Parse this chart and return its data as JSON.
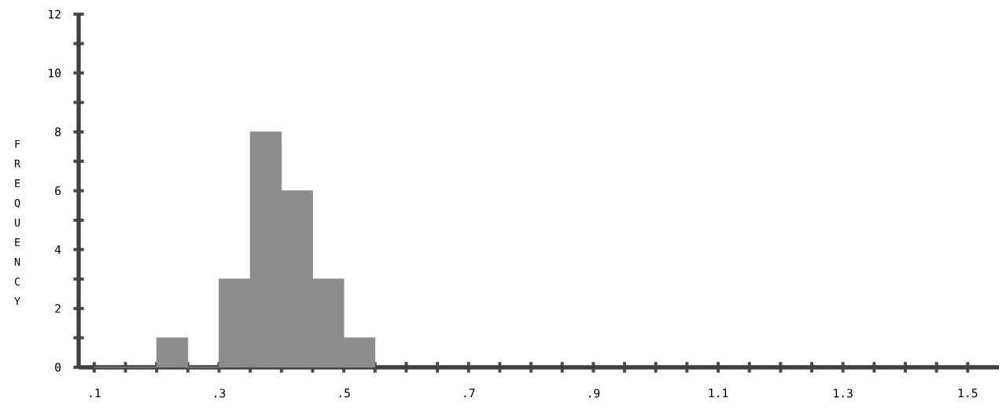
{
  "chart_data": {
    "type": "histogram",
    "ylabel": "FREQUENCY",
    "bins": [
      0.1,
      0.15,
      0.2,
      0.25,
      0.3,
      0.35,
      0.4,
      0.45,
      0.5,
      0.55
    ],
    "values": [
      0,
      0,
      1,
      0,
      3,
      8,
      6,
      3,
      1
    ],
    "color": "#8c8c8c",
    "xlim": [
      0.075,
      1.55
    ],
    "ylim": [
      0,
      12
    ],
    "xticks": [
      {
        "value": 0.1,
        "label": ".1"
      },
      {
        "value": 0.15,
        "label": null
      },
      {
        "value": 0.2,
        "label": null
      },
      {
        "value": 0.25,
        "label": null
      },
      {
        "value": 0.3,
        "label": ".3"
      },
      {
        "value": 0.35,
        "label": null
      },
      {
        "value": 0.4,
        "label": null
      },
      {
        "value": 0.45,
        "label": null
      },
      {
        "value": 0.5,
        "label": ".5"
      },
      {
        "value": 0.55,
        "label": null
      },
      {
        "value": 0.6,
        "label": null
      },
      {
        "value": 0.65,
        "label": null
      },
      {
        "value": 0.7,
        "label": ".7"
      },
      {
        "value": 0.75,
        "label": null
      },
      {
        "value": 0.8,
        "label": null
      },
      {
        "value": 0.85,
        "label": null
      },
      {
        "value": 0.9,
        "label": ".9"
      },
      {
        "value": 0.95,
        "label": null
      },
      {
        "value": 1.0,
        "label": null
      },
      {
        "value": 1.05,
        "label": null
      },
      {
        "value": 1.1,
        "label": "1.1"
      },
      {
        "value": 1.15,
        "label": null
      },
      {
        "value": 1.2,
        "label": null
      },
      {
        "value": 1.25,
        "label": null
      },
      {
        "value": 1.3,
        "label": "1.3"
      },
      {
        "value": 1.35,
        "label": null
      },
      {
        "value": 1.4,
        "label": null
      },
      {
        "value": 1.45,
        "label": null
      },
      {
        "value": 1.5,
        "label": "1.5"
      }
    ],
    "yticks": [
      0,
      {
        "value": 1,
        "label": null
      },
      2,
      {
        "value": 3,
        "label": null
      },
      4,
      {
        "value": 5,
        "label": null
      },
      6,
      {
        "value": 7,
        "label": null
      },
      8,
      {
        "value": 9,
        "label": null
      },
      10,
      {
        "value": 11,
        "label": null
      },
      12
    ],
    "grid": false
  }
}
